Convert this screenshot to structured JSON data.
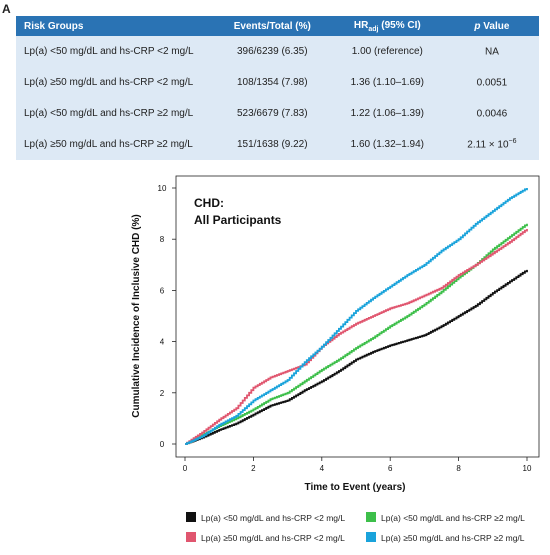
{
  "panel_label": "A",
  "table": {
    "headers": {
      "group": "Risk Groups",
      "events": "Events/Total (%)",
      "hr_main": "HR",
      "hr_sub": "adj",
      "hr_tail": " (95% CI)",
      "p_italic": "p",
      "p_tail": " Value"
    },
    "rows": [
      {
        "group": "Lp(a) <50 mg/dL and hs-CRP <2 mg/L",
        "events": "396/6239 (6.35)",
        "hr": "1.00 (reference)",
        "p": "NA",
        "p_exp": ""
      },
      {
        "group": "Lp(a) ≥50 mg/dL and hs-CRP <2 mg/L",
        "events": "108/1354 (7.98)",
        "hr": "1.36 (1.10–1.69)",
        "p": "0.0051",
        "p_exp": ""
      },
      {
        "group": "Lp(a) <50 mg/dL and hs-CRP ≥2 mg/L",
        "events": "523/6679 (7.83)",
        "hr": "1.22 (1.06–1.39)",
        "p": "0.0046",
        "p_exp": ""
      },
      {
        "group": "Lp(a) ≥50 mg/dL and hs-CRP ≥2 mg/L",
        "events": "151/1638 (9.22)",
        "hr": "1.60 (1.32–1.94)",
        "p": "2.11 × 10",
        "p_exp": "−6"
      }
    ]
  },
  "chart_data": {
    "type": "line",
    "title_line1": "CHD:",
    "title_line2": "All Participants",
    "xlabel": "Time to Event (years)",
    "ylabel": "Cumulative Incidence of Inclusive CHD (%)",
    "xlim": [
      0,
      10
    ],
    "ylim": [
      0,
      10
    ],
    "xticks": [
      0,
      2,
      4,
      6,
      8,
      10
    ],
    "yticks": [
      0,
      2,
      4,
      6,
      8,
      10
    ],
    "grid": false,
    "legend_position": "bottom",
    "x": [
      0,
      0.5,
      1,
      1.5,
      2,
      2.5,
      3,
      3.5,
      4,
      4.5,
      5,
      5.5,
      6,
      6.5,
      7,
      7.5,
      8,
      8.5,
      9,
      9.5,
      10
    ],
    "series": [
      {
        "name": "Lp(a) <50 mg/dL and hs-CRP <2 mg/L",
        "color": "#111111",
        "values": [
          0,
          0.25,
          0.55,
          0.8,
          1.15,
          1.5,
          1.7,
          2.1,
          2.45,
          2.85,
          3.3,
          3.6,
          3.85,
          4.05,
          4.25,
          4.6,
          5.0,
          5.4,
          5.9,
          6.35,
          6.8
        ]
      },
      {
        "name": "Lp(a) <50 mg/dL and hs-CRP ≥2 mg/L",
        "color": "#3dbf4a",
        "values": [
          0,
          0.35,
          0.7,
          1.0,
          1.35,
          1.75,
          2.0,
          2.45,
          2.9,
          3.3,
          3.75,
          4.15,
          4.6,
          5.0,
          5.45,
          5.95,
          6.5,
          7.0,
          7.6,
          8.1,
          8.6
        ]
      },
      {
        "name": "Lp(a) ≥50 mg/dL and hs-CRP <2 mg/L",
        "color": "#e0566f",
        "values": [
          0,
          0.45,
          0.95,
          1.4,
          2.2,
          2.6,
          2.85,
          3.1,
          3.8,
          4.3,
          4.7,
          5.0,
          5.3,
          5.5,
          5.8,
          6.1,
          6.6,
          7.0,
          7.45,
          7.9,
          8.4
        ]
      },
      {
        "name": "Lp(a) ≥50 mg/dL and hs-CRP ≥2 mg/L",
        "color": "#1aa3db",
        "values": [
          0,
          0.3,
          0.75,
          1.1,
          1.7,
          2.1,
          2.5,
          3.2,
          3.8,
          4.5,
          5.2,
          5.7,
          6.15,
          6.6,
          7.0,
          7.55,
          8.0,
          8.6,
          9.1,
          9.6,
          10.0
        ]
      }
    ]
  }
}
